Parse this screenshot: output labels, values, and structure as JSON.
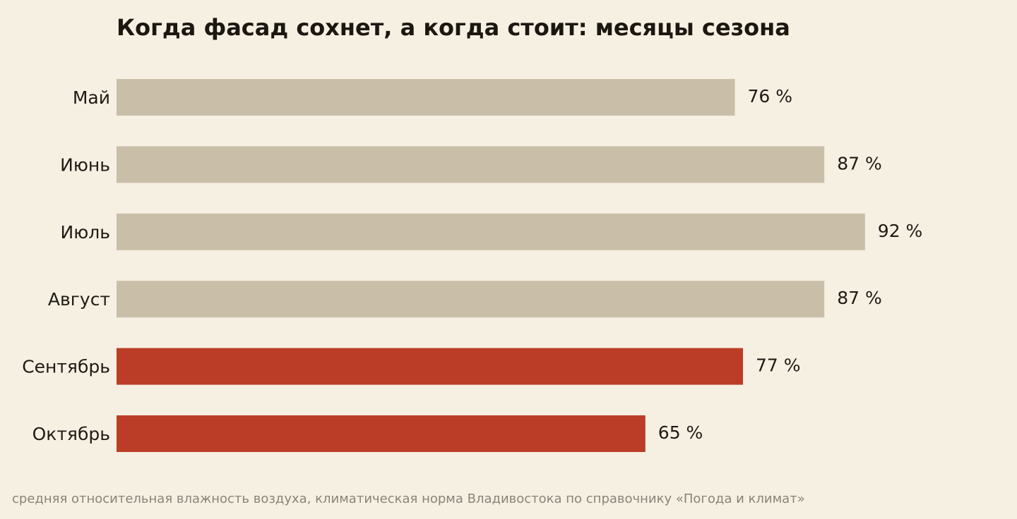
{
  "chart_data": {
    "type": "bar",
    "orientation": "horizontal",
    "title": "Когда фасад сохнет, а когда стоит: месяцы сезона",
    "categories": [
      "Май",
      "Июнь",
      "Июль",
      "Август",
      "Сентябрь",
      "Октябрь"
    ],
    "values": [
      76,
      87,
      92,
      87,
      77,
      65
    ],
    "value_labels": [
      "76 %",
      "87 %",
      "92 %",
      "87 %",
      "77 %",
      "65 %"
    ],
    "unit": "%",
    "xlim": [
      0,
      100
    ],
    "grid": false,
    "legend": "none",
    "footnote": "средняя относительная влажность воздуха, климатическая норма Владивостока по справочнику «Погода и климат»",
    "colors": {
      "neutral": "#c9bfa8",
      "highlight": "#bb3d27",
      "background": "#f6f0e3"
    },
    "highlighted": [
      false,
      false,
      false,
      false,
      true,
      true
    ]
  }
}
